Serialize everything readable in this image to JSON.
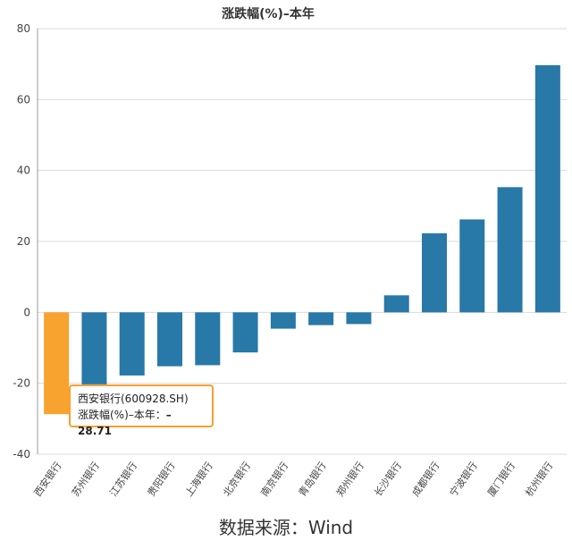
{
  "chart_data": {
    "type": "bar",
    "title": "涨跌幅(%)–本年",
    "categories": [
      "西安银行",
      "苏州银行",
      "江苏银行",
      "贵阳银行",
      "上海银行",
      "北京银行",
      "南京银行",
      "青岛银行",
      "郑州银行",
      "长沙银行",
      "成都银行",
      "宁波银行",
      "厦门银行",
      "杭州银行"
    ],
    "values": [
      -28.71,
      -20.3,
      -17.8,
      -15.2,
      -14.9,
      -11.3,
      -4.6,
      -3.6,
      -3.3,
      4.8,
      22.3,
      26.2,
      35.3,
      69.7
    ],
    "ylim": [
      -40,
      80
    ],
    "yticks": [
      -40,
      -20,
      0,
      20,
      40,
      60,
      80
    ],
    "grid": true,
    "colors": {
      "default": "#2878a8",
      "highlight": "#f8a230"
    },
    "highlight_index": 0
  },
  "tooltip": {
    "line1": "西安银行(600928.SH)",
    "line2_label": "涨跌幅(%)–本年：",
    "line2_value": "–28.71"
  },
  "source": "数据来源：Wind"
}
